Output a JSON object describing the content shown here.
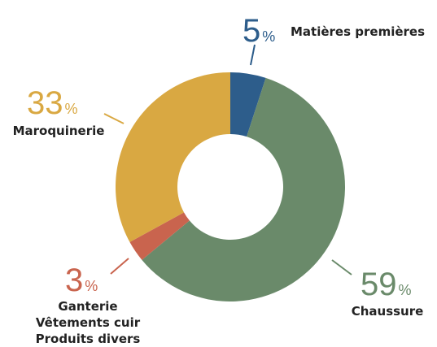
{
  "chart_data": {
    "type": "donut",
    "categories": [
      [
        "Matières premières"
      ],
      [
        "Chaussure"
      ],
      [
        "Ganterie",
        "Vêtements cuir",
        "Produits divers"
      ],
      [
        "Maroquinerie"
      ]
    ],
    "values": [
      5,
      59,
      3,
      33
    ],
    "unit": "%",
    "colors": [
      "#2d5d8b",
      "#6a8a6a",
      "#c9644e",
      "#d9a842"
    ]
  }
}
